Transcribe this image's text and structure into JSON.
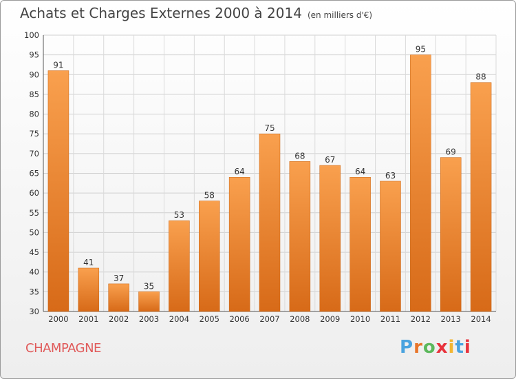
{
  "chart_data": {
    "type": "bar",
    "title": "Achats et Charges Externes 2000 à 2014",
    "subtitle": "(en milliers d'€)",
    "categories": [
      "2000",
      "2001",
      "2002",
      "2003",
      "2004",
      "2005",
      "2006",
      "2007",
      "2008",
      "2009",
      "2010",
      "2011",
      "2012",
      "2013",
      "2014"
    ],
    "values": [
      91,
      41,
      37,
      35,
      53,
      58,
      64,
      75,
      68,
      67,
      64,
      63,
      95,
      69,
      88
    ],
    "ylim": [
      30,
      100
    ],
    "yticks": [
      30,
      35,
      40,
      45,
      50,
      55,
      60,
      65,
      70,
      75,
      80,
      85,
      90,
      95,
      100
    ],
    "grid": true,
    "bar_color": "#f08a2e"
  },
  "location": "CHAMPAGNE",
  "logo": {
    "text": "Proxiti",
    "colors": [
      "#4aa3df",
      "#e8752a",
      "#5cb85c",
      "#e8323c",
      "#f2b632",
      "#4aa3df",
      "#e8323c"
    ]
  }
}
